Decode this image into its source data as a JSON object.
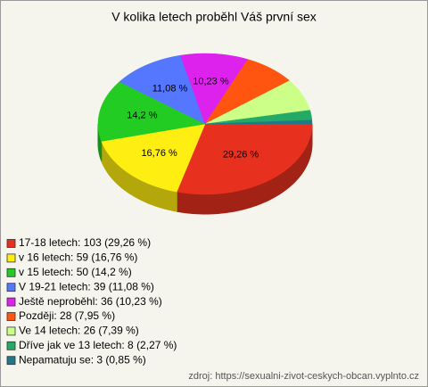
{
  "chart_data": {
    "type": "pie",
    "title": "V kolika letech proběhl Váš první sex",
    "categories": [
      "17-18 letech: 103 (29,26 %)",
      "v 16 letech: 59 (16,76 %)",
      "v 15 letech: 50 (14,2 %)",
      "V 19-21 letech: 39 (11,08 %)",
      "Ještě neproběhl: 36 (10,23 %)",
      "Později: 28 (7,95 %)",
      "Ve 14 letech: 26 (7,39 %)",
      "Dříve jak ve 13 letech: 8 (2,27 %)",
      "Nepamatuju se: 3 (0,85 %)"
    ],
    "values": [
      29.26,
      16.76,
      14.2,
      11.08,
      10.23,
      7.95,
      7.39,
      2.27,
      0.85
    ],
    "value_labels": [
      "29,26 %",
      "16,76 %",
      "14,2 %",
      "11,08 %",
      "10,23 %",
      null,
      null,
      null,
      null
    ],
    "colors": [
      "#e8301e",
      "#ffee11",
      "#22cc22",
      "#5577ff",
      "#dd22ee",
      "#ff5511",
      "#ccff88",
      "#22aa66",
      "#227788"
    ],
    "source": "zdroj: https://sexualni-zivot-ceskych-obcan.vyplnto.cz"
  }
}
